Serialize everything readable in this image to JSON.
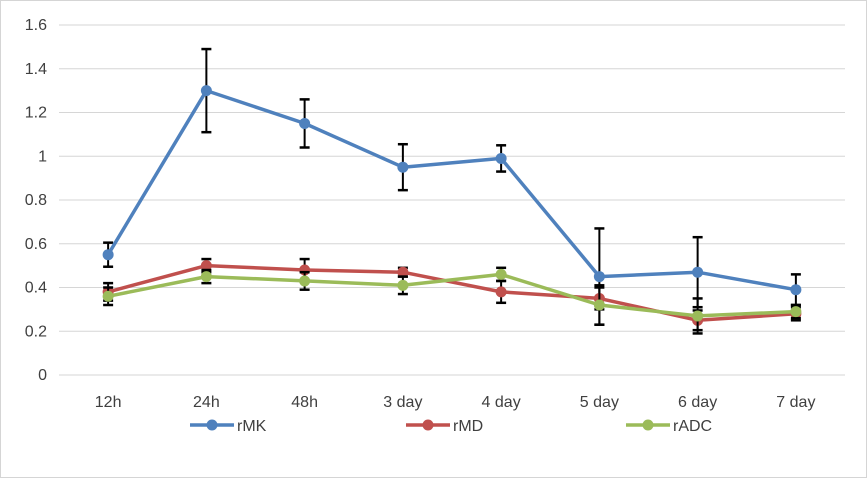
{
  "window": {
    "background": "#FFFFFF",
    "border_color": "#D5D5D5"
  },
  "chart_data": {
    "type": "line",
    "title": "",
    "categories": [
      "12h",
      "24h",
      "48h",
      "3 day",
      "4 day",
      "5 day",
      "6 day",
      "7 day"
    ],
    "series": [
      {
        "name": "rMK",
        "color": "#4F81BD",
        "values": [
          0.55,
          1.3,
          1.15,
          0.95,
          0.99,
          0.45,
          0.47,
          0.39
        ],
        "errors": [
          0.055,
          0.19,
          0.11,
          0.105,
          0.06,
          0.22,
          0.16,
          0.07
        ]
      },
      {
        "name": "rMD",
        "color": "#C0504D",
        "values": [
          0.38,
          0.5,
          0.48,
          0.47,
          0.38,
          0.35,
          0.25,
          0.28
        ],
        "errors": [
          0.04,
          0.03,
          0.05,
          0.02,
          0.05,
          0.05,
          0.045,
          0.03
        ]
      },
      {
        "name": "rADC",
        "color": "#9BBB59",
        "values": [
          0.36,
          0.45,
          0.43,
          0.41,
          0.46,
          0.32,
          0.27,
          0.29
        ],
        "errors": [
          0.04,
          0.03,
          0.04,
          0.04,
          0.03,
          0.09,
          0.08,
          0.03
        ]
      }
    ],
    "xlabel": "",
    "ylabel": "",
    "ylim": [
      0,
      1.6
    ],
    "yticks": [
      "0",
      "0.2",
      "0.4",
      "0.6",
      "0.8",
      "1",
      "1.2",
      "1.4",
      "1.6"
    ],
    "grid": true,
    "legend_position": "bottom",
    "gridline_color": "#D6D6D6",
    "error_bar_color": "#000000",
    "axis_text_color": "#404040"
  }
}
